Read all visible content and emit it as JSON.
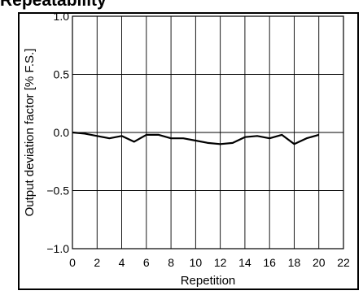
{
  "header": {
    "title_fragment": "Repeatability"
  },
  "chart_data": {
    "type": "line",
    "title": "Repeatability",
    "xlabel": "Repetition",
    "ylabel": "Output deviation factor [% F.S.]",
    "xlim": [
      0,
      22
    ],
    "ylim": [
      -1.0,
      1.0
    ],
    "xticks": [
      0,
      2,
      4,
      6,
      8,
      10,
      12,
      14,
      16,
      18,
      20,
      22
    ],
    "xtick_labels": [
      "0",
      "2",
      "4",
      "6",
      "8",
      "10",
      "12",
      "14",
      "16",
      "18",
      "20",
      "22"
    ],
    "yticks": [
      1.0,
      0.5,
      0.0,
      -0.5,
      -1.0
    ],
    "ytick_labels": [
      "1.0",
      "0.5",
      "0.0",
      "−0.5",
      "−1.0"
    ],
    "grid": true,
    "series": [
      {
        "x": [
          0,
          1,
          2,
          3,
          4,
          5,
          6,
          7,
          8,
          9,
          10,
          11,
          12,
          13,
          14,
          15,
          16,
          17,
          18,
          19,
          20
        ],
        "values": [
          0.0,
          -0.01,
          -0.03,
          -0.05,
          -0.03,
          -0.08,
          -0.02,
          -0.02,
          -0.05,
          -0.05,
          -0.07,
          -0.09,
          -0.1,
          -0.09,
          -0.04,
          -0.03,
          -0.05,
          -0.02,
          -0.1,
          -0.05,
          -0.02
        ],
        "color": "#000000"
      }
    ]
  }
}
